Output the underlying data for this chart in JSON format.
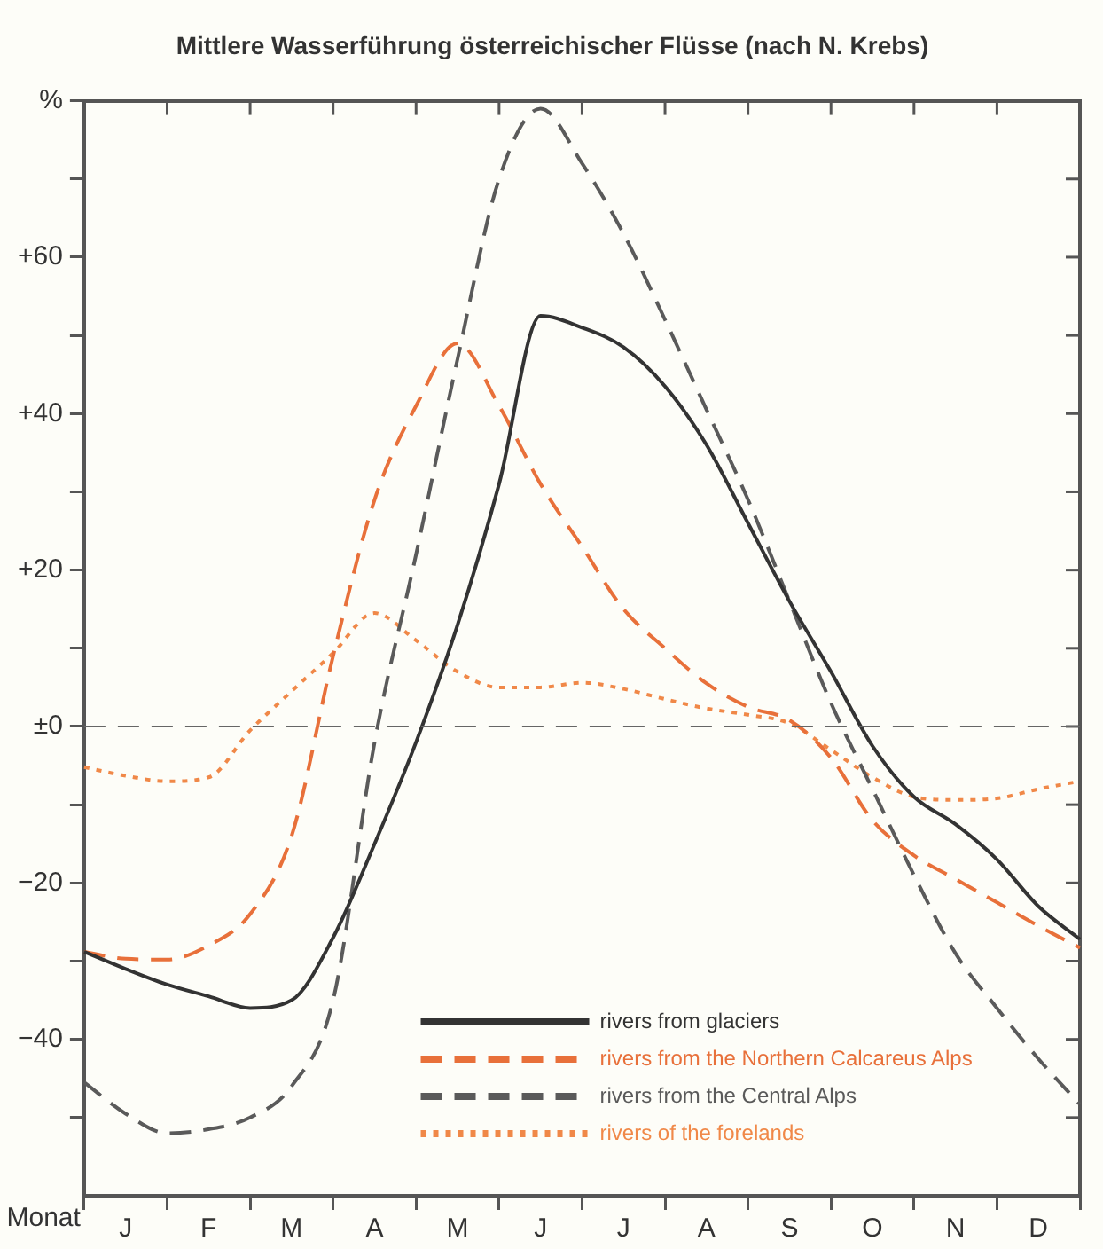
{
  "chart_data": {
    "type": "line",
    "title": "Mittlere Wasserführung österreichischer Flüsse (nach N. Krebs)",
    "xlabel": "Monat",
    "categories": [
      null,
      "J",
      null,
      "F",
      null,
      "M",
      null,
      "A",
      null,
      "M",
      null,
      "J",
      null,
      "J",
      null,
      "A",
      null,
      "S",
      null,
      "O",
      null,
      "N",
      null,
      "D",
      null
    ],
    "ylim": [
      -60,
      80
    ],
    "yticks": [
      {
        "value": -50,
        "label": null
      },
      {
        "value": -40,
        "label": "−40"
      },
      {
        "value": -30,
        "label": null
      },
      {
        "value": -20,
        "label": "−20"
      },
      {
        "value": -10,
        "label": null
      },
      {
        "value": 0,
        "label": "±0"
      },
      {
        "value": 10,
        "label": null
      },
      {
        "value": 20,
        "label": "+20"
      },
      {
        "value": 30,
        "label": null
      },
      {
        "value": 40,
        "label": "+40"
      },
      {
        "value": 50,
        "label": null
      },
      {
        "value": 60,
        "label": "+60"
      },
      {
        "value": 70,
        "label": null
      },
      {
        "value": 80,
        "label": "%"
      }
    ],
    "grid": false,
    "legend": "bottom right",
    "marker": "none",
    "ref_lines": [
      {
        "axis": "y",
        "value": 0,
        "color": "#666666",
        "line_style": "dashed"
      }
    ],
    "series": [
      {
        "name": "rivers from glaciers",
        "color": "#333333",
        "line_style": "solid",
        "values": [
          -28.8,
          -31,
          -33,
          -34.5,
          -36,
          -35,
          -27,
          -15,
          -2,
          13,
          31,
          52.5,
          51,
          48.5,
          43.5,
          36,
          26,
          16,
          7,
          -2.5,
          -9,
          -12.5,
          -17,
          -23,
          -27.2
        ]
      },
      {
        "name": "rivers from the Northern Calcareus Alps",
        "color": "#e8703a",
        "line_style": "dashed",
        "values": [
          -28.8,
          -29.7,
          -29.8,
          -28,
          -24,
          -14,
          9,
          29,
          41,
          49,
          41,
          31,
          23,
          15,
          10,
          5.5,
          2.5,
          0.8,
          -4,
          -12,
          -16.5,
          -19.5,
          -22.5,
          -25.5,
          -28.3
        ]
      },
      {
        "name": "rivers from the Central Alps",
        "color": "#5a5a5a",
        "line_style": "dashed",
        "values": [
          -45.5,
          -49.5,
          -52,
          -51.5,
          -50,
          -46,
          -35,
          -2,
          22,
          47,
          70,
          79,
          72,
          63,
          52,
          40.5,
          29,
          16,
          3,
          -8,
          -19,
          -29,
          -36,
          -42.5,
          -48.3
        ]
      },
      {
        "name": "rivers of the forelands",
        "color": "#f08848",
        "line_style": "dotted",
        "values": [
          -5.2,
          -6.3,
          -7,
          -6.5,
          -0.5,
          4.5,
          9.4,
          14.5,
          11,
          7,
          5,
          5,
          5.6,
          4.8,
          3.5,
          2.3,
          1.5,
          0.4,
          -3,
          -6.5,
          -9,
          -9.4,
          -9.2,
          -8,
          -7
        ]
      }
    ]
  }
}
